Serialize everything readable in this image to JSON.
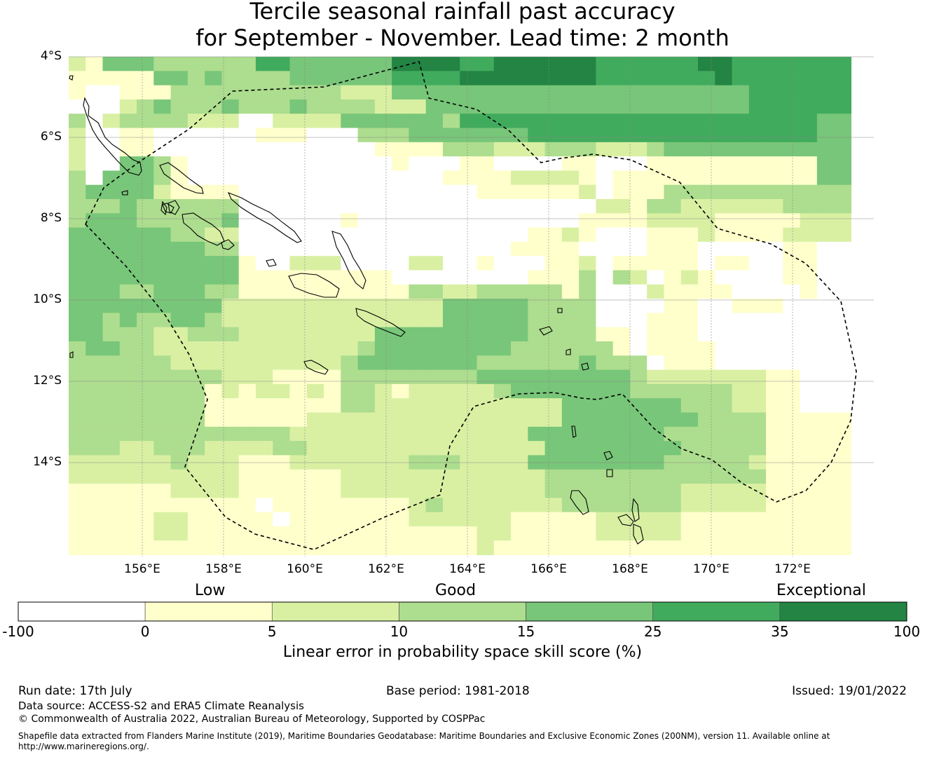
{
  "title": {
    "line1": "Tercile seasonal rainfall past accuracy",
    "line2": "for September - November. Lead time: 2 month"
  },
  "axes": {
    "lat_labels": [
      "4°S",
      "6°S",
      "8°S",
      "10°S",
      "12°S",
      "14°S"
    ],
    "lon_labels": [
      "156°E",
      "158°E",
      "160°E",
      "162°E",
      "164°E",
      "166°E",
      "168°E",
      "170°E",
      "172°E"
    ]
  },
  "legend": {
    "categories": [
      "Low",
      "Good",
      "Exceptional"
    ],
    "ticks": [
      "-100",
      "0",
      "5",
      "10",
      "15",
      "25",
      "35",
      "100"
    ],
    "colors": [
      "#ffffff",
      "#ffffcc",
      "#d9f0a3",
      "#addd8e",
      "#78c679",
      "#41ab5d",
      "#238443"
    ],
    "label": "Linear error in probability space skill score (%)"
  },
  "footer": {
    "run_date": "Run date: 17th July",
    "base_period": "Base period: 1981-2018",
    "issued": "Issued: 19/01/2022",
    "data_source": "Data source: ACCESS-S2 and ERA5 Climate Reanalysis",
    "copyright": "© Commonwealth of Australia 2022, Australian Bureau of Meteorology, Supported by COSPPac",
    "shapefile_line1": "Shapefile data extracted from Flanders Marine Institute (2019), Maritime Boundaries Geodatabase: Maritime Boundaries and Exclusive Economic Zones (200NM), version 11. Available online at",
    "shapefile_line2": "http://www.marineregions.org/."
  },
  "map_data": {
    "type": "heatmap",
    "lon_start": 154.25,
    "lat_start": -3.75,
    "cell_deg": 0.8333,
    "cell_classes": [
      "2144433333355444444666655666666555555665555555",
      "1111144343333444444555566666666555555565555555",
      "1001113333333333222444444444444444444444555555",
      "0002343334333433332224444444444444444444555555",
      "3023333222002222444444355555555555555555555544",
      "2001100000011100033344444445555555555555555544",
      "2001100000000000001111333222333222344444444444",
      "2004431000000000000100011000011000111111111144",
      "3044431000000000000000111122221011111111111144",
      "3444421111000000000000001111112011133333333333",
      "3334333333000000000000000000000221332222223333",
      "3444333334000000100000000000001111222211111222",
      "4444443322000000000000000001121000111211112222",
      "4444444433000000000000000011110000111000001100",
      "4444444444100222000022001000112011111011001100",
      "4444444444111111111000000001113032012100001100",
      "4443344433111111111133223333313000211110000100",
      "4444444442222222222222444443333000011001110000",
      "4434334432222222222222444443333000111000000000",
      "4433322333222222224444444443333110111000000000",
      "3443322222222222234444444433333310111100000000",
      "3333332222222222344444443333334333011100000000",
      "3333333332221111333333334444444443222222211000",
      "3333333312122121332122222344444443333332211000",
      "3333333311111111332222222222244444443332211000",
      "3333333311111122222222222222244444444333311111",
      "3333333333333222222222222224444444433333311111",
      "3332233322223322222222222222444444443333311111",
      "2222223222111222222233322224444444433333211111",
      "2222222222111111222222222222333333333333311111",
      "1111112222111111222222222222333333332222211111",
      "1111111111101111111123222222233333332222211111",
      "1111122111110111111122222211111222221111111111",
      "1111122111111111111111112211111222221111111111",
      "1111111111111111111111112111111111111111111111"
    ],
    "region_notes": "Lat 4°S-16°S, Lon 154°E-174°E"
  }
}
